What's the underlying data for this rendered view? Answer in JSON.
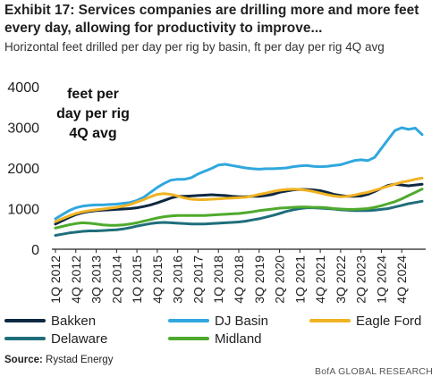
{
  "header": {
    "title": "Exhibit 17: Services companies are drilling more and more feet every day, allowing for productivity to improve...",
    "subtitle": "Horizontal feet drilled per day per rig by basin, ft per day per rig 4Q avg"
  },
  "footer": {
    "source_label": "Source:",
    "source_text": " Rystad Energy",
    "credit": "BofA GLOBAL RESEARCH"
  },
  "chart_data": {
    "type": "line",
    "annotation": [
      "feet per",
      "day per rig",
      "4Q avg"
    ],
    "xlabels": [
      "1Q 2012",
      "4Q 2012",
      "3Q 2013",
      "2Q 2014",
      "1Q 2015",
      "4Q 2015",
      "3Q 2016",
      "2Q 2017",
      "1Q 2018",
      "4Q 2018",
      "3Q 2019",
      "2Q 2020",
      "1Q 2021",
      "4Q 2021",
      "3Q 2022",
      "2Q 2023",
      "1Q 2024",
      "4Q 2024"
    ],
    "quarters_start": "1Q 2012",
    "ylim": [
      0,
      4000
    ],
    "yticks": [
      0,
      1000,
      2000,
      3000,
      4000
    ],
    "grid": false,
    "legend_position": "bottom",
    "series": [
      {
        "name": "Bakken",
        "color": "#0e2841",
        "values": [
          620,
          700,
          780,
          850,
          900,
          930,
          950,
          960,
          970,
          980,
          990,
          1000,
          1020,
          1050,
          1090,
          1140,
          1200,
          1260,
          1300,
          1300,
          1310,
          1320,
          1330,
          1340,
          1330,
          1320,
          1300,
          1290,
          1290,
          1300,
          1300,
          1320,
          1350,
          1400,
          1430,
          1460,
          1470,
          1470,
          1460,
          1440,
          1400,
          1350,
          1320,
          1300,
          1300,
          1310,
          1350,
          1420,
          1500,
          1570,
          1600,
          1580,
          1560,
          1580,
          1600
        ]
      },
      {
        "name": "DJ Basin",
        "color": "#30a7de",
        "values": [
          750,
          850,
          950,
          1020,
          1060,
          1080,
          1090,
          1090,
          1100,
          1110,
          1130,
          1150,
          1200,
          1280,
          1400,
          1520,
          1620,
          1700,
          1720,
          1720,
          1760,
          1850,
          1920,
          1990,
          2070,
          2090,
          2060,
          2030,
          2000,
          1980,
          1970,
          1980,
          1980,
          1990,
          2000,
          2030,
          2050,
          2060,
          2040,
          2030,
          2040,
          2060,
          2080,
          2130,
          2180,
          2200,
          2180,
          2260,
          2480,
          2700,
          2920,
          2990,
          2950,
          2980,
          2820
        ]
      },
      {
        "name": "Eagle Ford",
        "color": "#f0b323",
        "values": [
          680,
          750,
          820,
          880,
          920,
          950,
          970,
          990,
          1010,
          1030,
          1060,
          1100,
          1160,
          1220,
          1290,
          1350,
          1370,
          1350,
          1310,
          1260,
          1230,
          1220,
          1220,
          1230,
          1240,
          1250,
          1260,
          1270,
          1280,
          1310,
          1350,
          1380,
          1420,
          1450,
          1470,
          1480,
          1470,
          1450,
          1420,
          1380,
          1340,
          1310,
          1290,
          1300,
          1330,
          1370,
          1400,
          1450,
          1500,
          1550,
          1600,
          1650,
          1680,
          1720,
          1750
        ]
      },
      {
        "name": "Delaware",
        "color": "#1f6e7b",
        "values": [
          340,
          370,
          400,
          420,
          440,
          450,
          450,
          460,
          470,
          480,
          500,
          530,
          570,
          600,
          630,
          650,
          660,
          650,
          640,
          630,
          620,
          620,
          620,
          630,
          640,
          650,
          660,
          670,
          690,
          720,
          750,
          790,
          830,
          880,
          930,
          970,
          1000,
          1020,
          1020,
          1010,
          1000,
          990,
          970,
          960,
          950,
          950,
          950,
          960,
          980,
          1000,
          1040,
          1080,
          1120,
          1150,
          1180
        ]
      },
      {
        "name": "Midland",
        "color": "#4eaa2c",
        "values": [
          520,
          560,
          600,
          630,
          650,
          640,
          620,
          600,
          590,
          590,
          600,
          620,
          650,
          690,
          730,
          770,
          800,
          820,
          830,
          830,
          830,
          830,
          830,
          840,
          850,
          860,
          870,
          880,
          900,
          920,
          950,
          970,
          990,
          1010,
          1020,
          1030,
          1040,
          1040,
          1030,
          1030,
          1020,
          1000,
          990,
          980,
          980,
          990,
          1000,
          1030,
          1070,
          1120,
          1170,
          1240,
          1320,
          1400,
          1480
        ]
      }
    ]
  }
}
